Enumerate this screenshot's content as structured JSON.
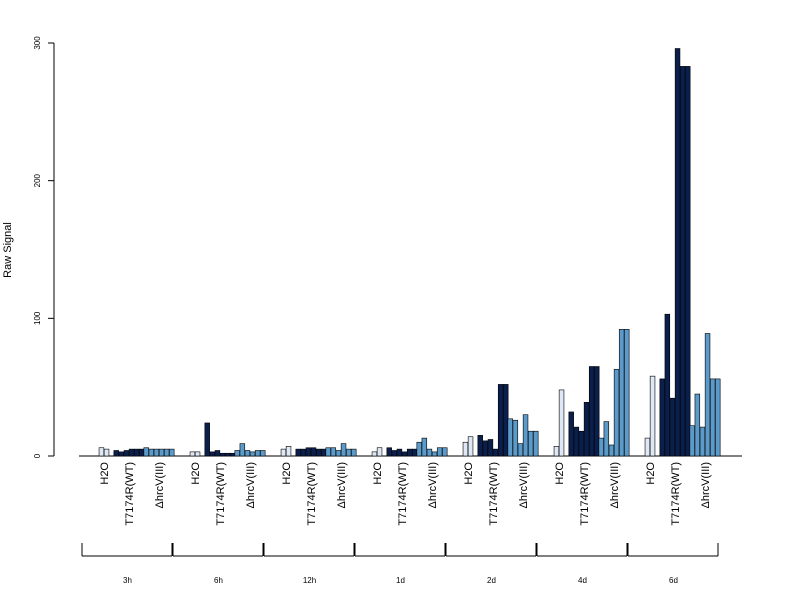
{
  "chart_data": {
    "type": "bar",
    "ylabel": "Raw Signal",
    "ylim": [
      0,
      300
    ],
    "yticks": [
      0,
      100,
      200,
      300
    ],
    "conditions": [
      "H2O",
      "T7174R(WT)",
      "ΔhrcV(III)"
    ],
    "colors": {
      "H2O": "#dfe9f5",
      "T7174R(WT)": "#0b1f4d",
      "ΔhrcV(III)": "#5b9ac9"
    },
    "groups": [
      {
        "label": "3h",
        "bars": {
          "H2O": [
            6,
            5
          ],
          "T7174R(WT)": [
            4,
            3,
            4,
            5,
            5,
            5
          ],
          "ΔhrcV(III)": [
            6,
            5,
            5,
            5,
            5,
            5
          ]
        }
      },
      {
        "label": "6h",
        "bars": {
          "H2O": [
            3,
            3
          ],
          "T7174R(WT)": [
            24,
            3,
            4,
            2,
            2,
            2
          ],
          "ΔhrcV(III)": [
            4,
            9,
            4,
            3,
            4,
            4
          ]
        }
      },
      {
        "label": "12h",
        "bars": {
          "H2O": [
            5,
            7
          ],
          "T7174R(WT)": [
            5,
            5,
            6,
            6,
            5,
            5
          ],
          "ΔhrcV(III)": [
            6,
            6,
            4,
            9,
            5,
            5
          ]
        }
      },
      {
        "label": "1d",
        "bars": {
          "H2O": [
            3,
            6
          ],
          "T7174R(WT)": [
            6,
            4,
            5,
            3,
            5,
            5
          ],
          "ΔhrcV(III)": [
            10,
            13,
            5,
            3,
            6,
            6
          ]
        }
      },
      {
        "label": "2d",
        "bars": {
          "H2O": [
            10,
            14
          ],
          "T7174R(WT)": [
            15,
            11,
            12,
            5,
            52,
            52
          ],
          "ΔhrcV(III)": [
            27,
            26,
            9,
            30,
            18,
            18
          ]
        }
      },
      {
        "label": "4d",
        "bars": {
          "H2O": [
            7,
            48
          ],
          "T7174R(WT)": [
            32,
            21,
            18,
            39,
            65,
            65
          ],
          "ΔhrcV(III)": [
            13,
            25,
            8,
            63,
            92,
            92
          ]
        }
      },
      {
        "label": "6d",
        "bars": {
          "H2O": [
            13,
            58
          ],
          "T7174R(WT)": [
            56,
            103,
            42,
            296,
            283,
            283
          ],
          "ΔhrcV(III)": [
            22,
            45,
            21,
            89,
            56,
            56
          ]
        }
      }
    ]
  }
}
